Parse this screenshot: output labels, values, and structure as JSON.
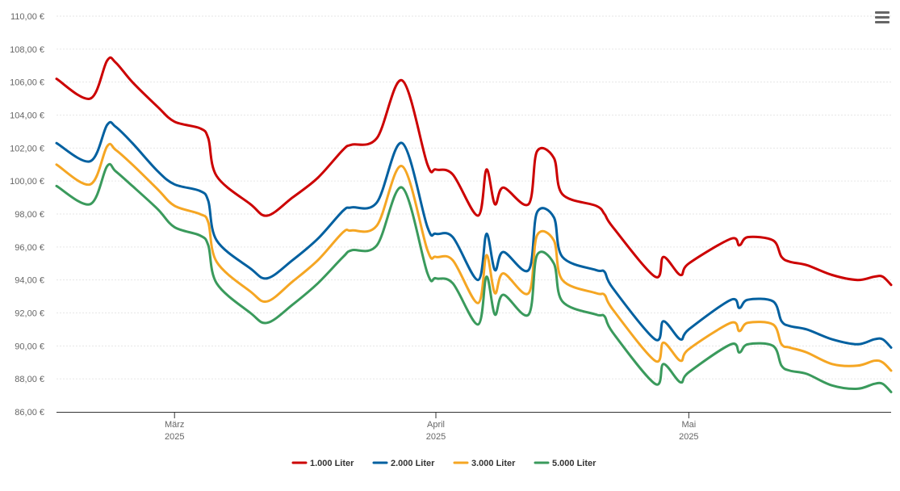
{
  "menu": {
    "icon": "hamburger-menu-icon"
  },
  "chart_data": {
    "type": "line",
    "title": "",
    "xlabel": "",
    "ylabel": "",
    "ylim": [
      86,
      110
    ],
    "yticks": [
      "86,00 €",
      "88,00 €",
      "90,00 €",
      "92,00 €",
      "94,00 €",
      "96,00 €",
      "98,00 €",
      "100,00 €",
      "102,00 €",
      "104,00 €",
      "106,00 €",
      "108,00 €",
      "110,00 €"
    ],
    "grid": true,
    "legend_position": "bottom-center",
    "x_range": [
      "2025-02-15",
      "2025-05-25"
    ],
    "xticks": [
      {
        "date": "2025-03-01",
        "month": "März",
        "year": "2025"
      },
      {
        "date": "2025-04-01",
        "month": "April",
        "year": "2025"
      },
      {
        "date": "2025-05-01",
        "month": "Mai",
        "year": "2025"
      }
    ],
    "x": [
      "2025-02-15",
      "2025-02-19",
      "2025-02-21",
      "2025-02-22",
      "2025-02-24",
      "2025-02-27",
      "2025-03-01",
      "2025-03-04",
      "2025-03-05",
      "2025-03-06",
      "2025-03-10",
      "2025-03-12",
      "2025-03-15",
      "2025-03-18",
      "2025-03-21",
      "2025-03-22",
      "2025-03-25",
      "2025-03-28",
      "2025-03-31",
      "2025-04-01",
      "2025-04-03",
      "2025-04-06",
      "2025-04-07",
      "2025-04-08",
      "2025-04-09",
      "2025-04-12",
      "2025-04-13",
      "2025-04-15",
      "2025-04-16",
      "2025-04-20",
      "2025-04-21",
      "2025-04-22",
      "2025-04-27",
      "2025-04-28",
      "2025-04-30",
      "2025-05-01",
      "2025-05-06",
      "2025-05-07",
      "2025-05-08",
      "2025-05-11",
      "2025-05-12",
      "2025-05-13",
      "2025-05-15",
      "2025-05-18",
      "2025-05-21",
      "2025-05-23",
      "2025-05-24",
      "2025-05-25"
    ],
    "series": [
      {
        "name": "1.000 Liter",
        "color": "#cc0000",
        "values": [
          106.2,
          105.0,
          107.3,
          107.2,
          106.0,
          104.5,
          103.6,
          103.2,
          102.6,
          100.3,
          98.6,
          97.9,
          99.0,
          100.2,
          101.9,
          102.2,
          102.6,
          106.1,
          101.0,
          100.7,
          100.4,
          97.9,
          100.7,
          98.6,
          99.6,
          98.6,
          101.8,
          101.4,
          99.2,
          98.5,
          98.0,
          97.2,
          94.2,
          95.4,
          94.3,
          95.0,
          96.5,
          96.1,
          96.6,
          96.4,
          95.4,
          95.1,
          94.9,
          94.3,
          94.0,
          94.2,
          94.2,
          93.7
        ]
      },
      {
        "name": "2.000 Liter",
        "color": "#0060a0",
        "values": [
          102.3,
          101.2,
          103.4,
          103.3,
          102.3,
          100.6,
          99.8,
          99.4,
          98.8,
          96.4,
          94.7,
          94.1,
          95.2,
          96.5,
          98.2,
          98.4,
          98.7,
          102.3,
          97.2,
          96.8,
          96.6,
          94.0,
          96.8,
          94.6,
          95.7,
          94.6,
          98.1,
          97.8,
          95.4,
          94.6,
          94.5,
          93.5,
          90.4,
          91.5,
          90.4,
          91.0,
          92.8,
          92.3,
          92.8,
          92.7,
          91.5,
          91.2,
          91.0,
          90.4,
          90.1,
          90.4,
          90.4,
          89.9
        ]
      },
      {
        "name": "3.000 Liter",
        "color": "#f5a623",
        "values": [
          101.0,
          99.8,
          102.1,
          101.9,
          101.0,
          99.5,
          98.5,
          98.0,
          97.5,
          95.1,
          93.3,
          92.7,
          93.9,
          95.2,
          96.9,
          97.0,
          97.3,
          100.9,
          95.8,
          95.4,
          95.2,
          92.6,
          95.5,
          93.2,
          94.4,
          93.2,
          96.7,
          96.4,
          94.0,
          93.2,
          93.1,
          92.2,
          89.1,
          90.2,
          89.1,
          89.8,
          91.4,
          90.9,
          91.4,
          91.3,
          90.1,
          89.9,
          89.6,
          88.9,
          88.8,
          89.1,
          89.0,
          88.5
        ]
      },
      {
        "name": "5.000 Liter",
        "color": "#3a9a5c",
        "values": [
          99.7,
          98.6,
          100.9,
          100.6,
          99.7,
          98.3,
          97.2,
          96.7,
          96.1,
          93.8,
          92.0,
          91.4,
          92.5,
          93.8,
          95.4,
          95.8,
          96.1,
          99.6,
          94.4,
          94.1,
          93.8,
          91.3,
          94.2,
          91.9,
          93.1,
          91.9,
          95.5,
          95.0,
          92.7,
          91.9,
          91.8,
          90.8,
          87.7,
          88.9,
          87.8,
          88.4,
          90.1,
          89.6,
          90.1,
          90.0,
          88.8,
          88.5,
          88.3,
          87.6,
          87.4,
          87.7,
          87.7,
          87.2
        ]
      }
    ]
  }
}
